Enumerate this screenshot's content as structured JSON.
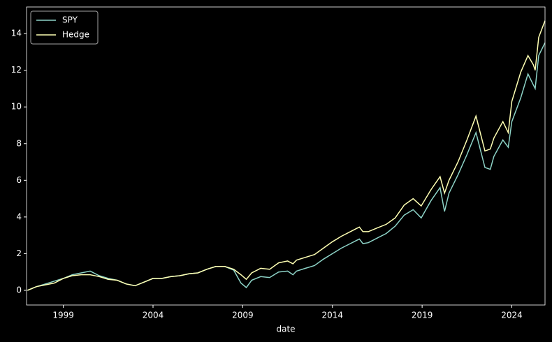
{
  "chart_data": {
    "type": "line",
    "xlabel": "date",
    "x": [
      1997.0,
      1997.5,
      1998.0,
      1998.5,
      1999.0,
      1999.5,
      2000.0,
      2000.5,
      2001.0,
      2001.5,
      2002.0,
      2002.5,
      2003.0,
      2003.5,
      2004.0,
      2004.5,
      2005.0,
      2005.5,
      2006.0,
      2006.5,
      2007.0,
      2007.5,
      2008.0,
      2008.5,
      2008.9,
      2009.2,
      2009.5,
      2010.0,
      2010.5,
      2011.0,
      2011.5,
      2011.8,
      2012.0,
      2012.5,
      2013.0,
      2013.5,
      2014.0,
      2014.5,
      2015.0,
      2015.5,
      2015.7,
      2016.0,
      2016.5,
      2017.0,
      2017.5,
      2018.0,
      2018.5,
      2018.95,
      2019.5,
      2020.0,
      2020.25,
      2020.5,
      2021.0,
      2021.5,
      2022.0,
      2022.5,
      2022.8,
      2023.0,
      2023.5,
      2023.8,
      2024.0,
      2024.5,
      2024.9,
      2025.2,
      2025.3,
      2025.5,
      2025.85
    ],
    "series": [
      {
        "name": "SPY",
        "color": "#8dd3c7",
        "values": [
          0,
          0.2,
          0.35,
          0.5,
          0.65,
          0.85,
          0.95,
          1.05,
          0.8,
          0.65,
          0.55,
          0.35,
          0.25,
          0.45,
          0.65,
          0.65,
          0.75,
          0.8,
          0.9,
          0.95,
          1.15,
          1.3,
          1.3,
          1.1,
          0.4,
          0.15,
          0.55,
          0.75,
          0.7,
          1.0,
          1.05,
          0.85,
          1.05,
          1.2,
          1.35,
          1.7,
          2.0,
          2.3,
          2.55,
          2.8,
          2.55,
          2.6,
          2.85,
          3.1,
          3.5,
          4.1,
          4.4,
          3.95,
          4.9,
          5.6,
          4.3,
          5.3,
          6.3,
          7.4,
          8.6,
          6.7,
          6.6,
          7.3,
          8.2,
          7.8,
          9.2,
          10.5,
          11.8,
          11.2,
          11.0,
          12.8,
          13.5
        ]
      },
      {
        "name": "Hedge",
        "color": "#feffb3",
        "values": [
          0,
          0.2,
          0.3,
          0.4,
          0.65,
          0.8,
          0.85,
          0.85,
          0.75,
          0.6,
          0.55,
          0.35,
          0.25,
          0.45,
          0.65,
          0.65,
          0.75,
          0.8,
          0.9,
          0.95,
          1.15,
          1.3,
          1.3,
          1.15,
          0.85,
          0.6,
          0.95,
          1.2,
          1.15,
          1.5,
          1.6,
          1.45,
          1.65,
          1.8,
          1.95,
          2.3,
          2.65,
          2.95,
          3.2,
          3.45,
          3.2,
          3.2,
          3.4,
          3.6,
          3.95,
          4.65,
          5.0,
          4.6,
          5.5,
          6.2,
          5.3,
          6.0,
          7.0,
          8.2,
          9.5,
          7.6,
          7.7,
          8.3,
          9.2,
          8.6,
          10.3,
          11.9,
          12.8,
          12.3,
          12.0,
          13.8,
          14.7
        ]
      }
    ],
    "xlim": [
      1996.95,
      2025.85
    ],
    "xticks": [
      1999,
      2004,
      2009,
      2014,
      2019,
      2024
    ],
    "ylim": [
      -0.8,
      15.45
    ],
    "yticks": [
      0,
      2,
      4,
      6,
      8,
      10,
      12,
      14
    ],
    "legend": "upper left"
  }
}
